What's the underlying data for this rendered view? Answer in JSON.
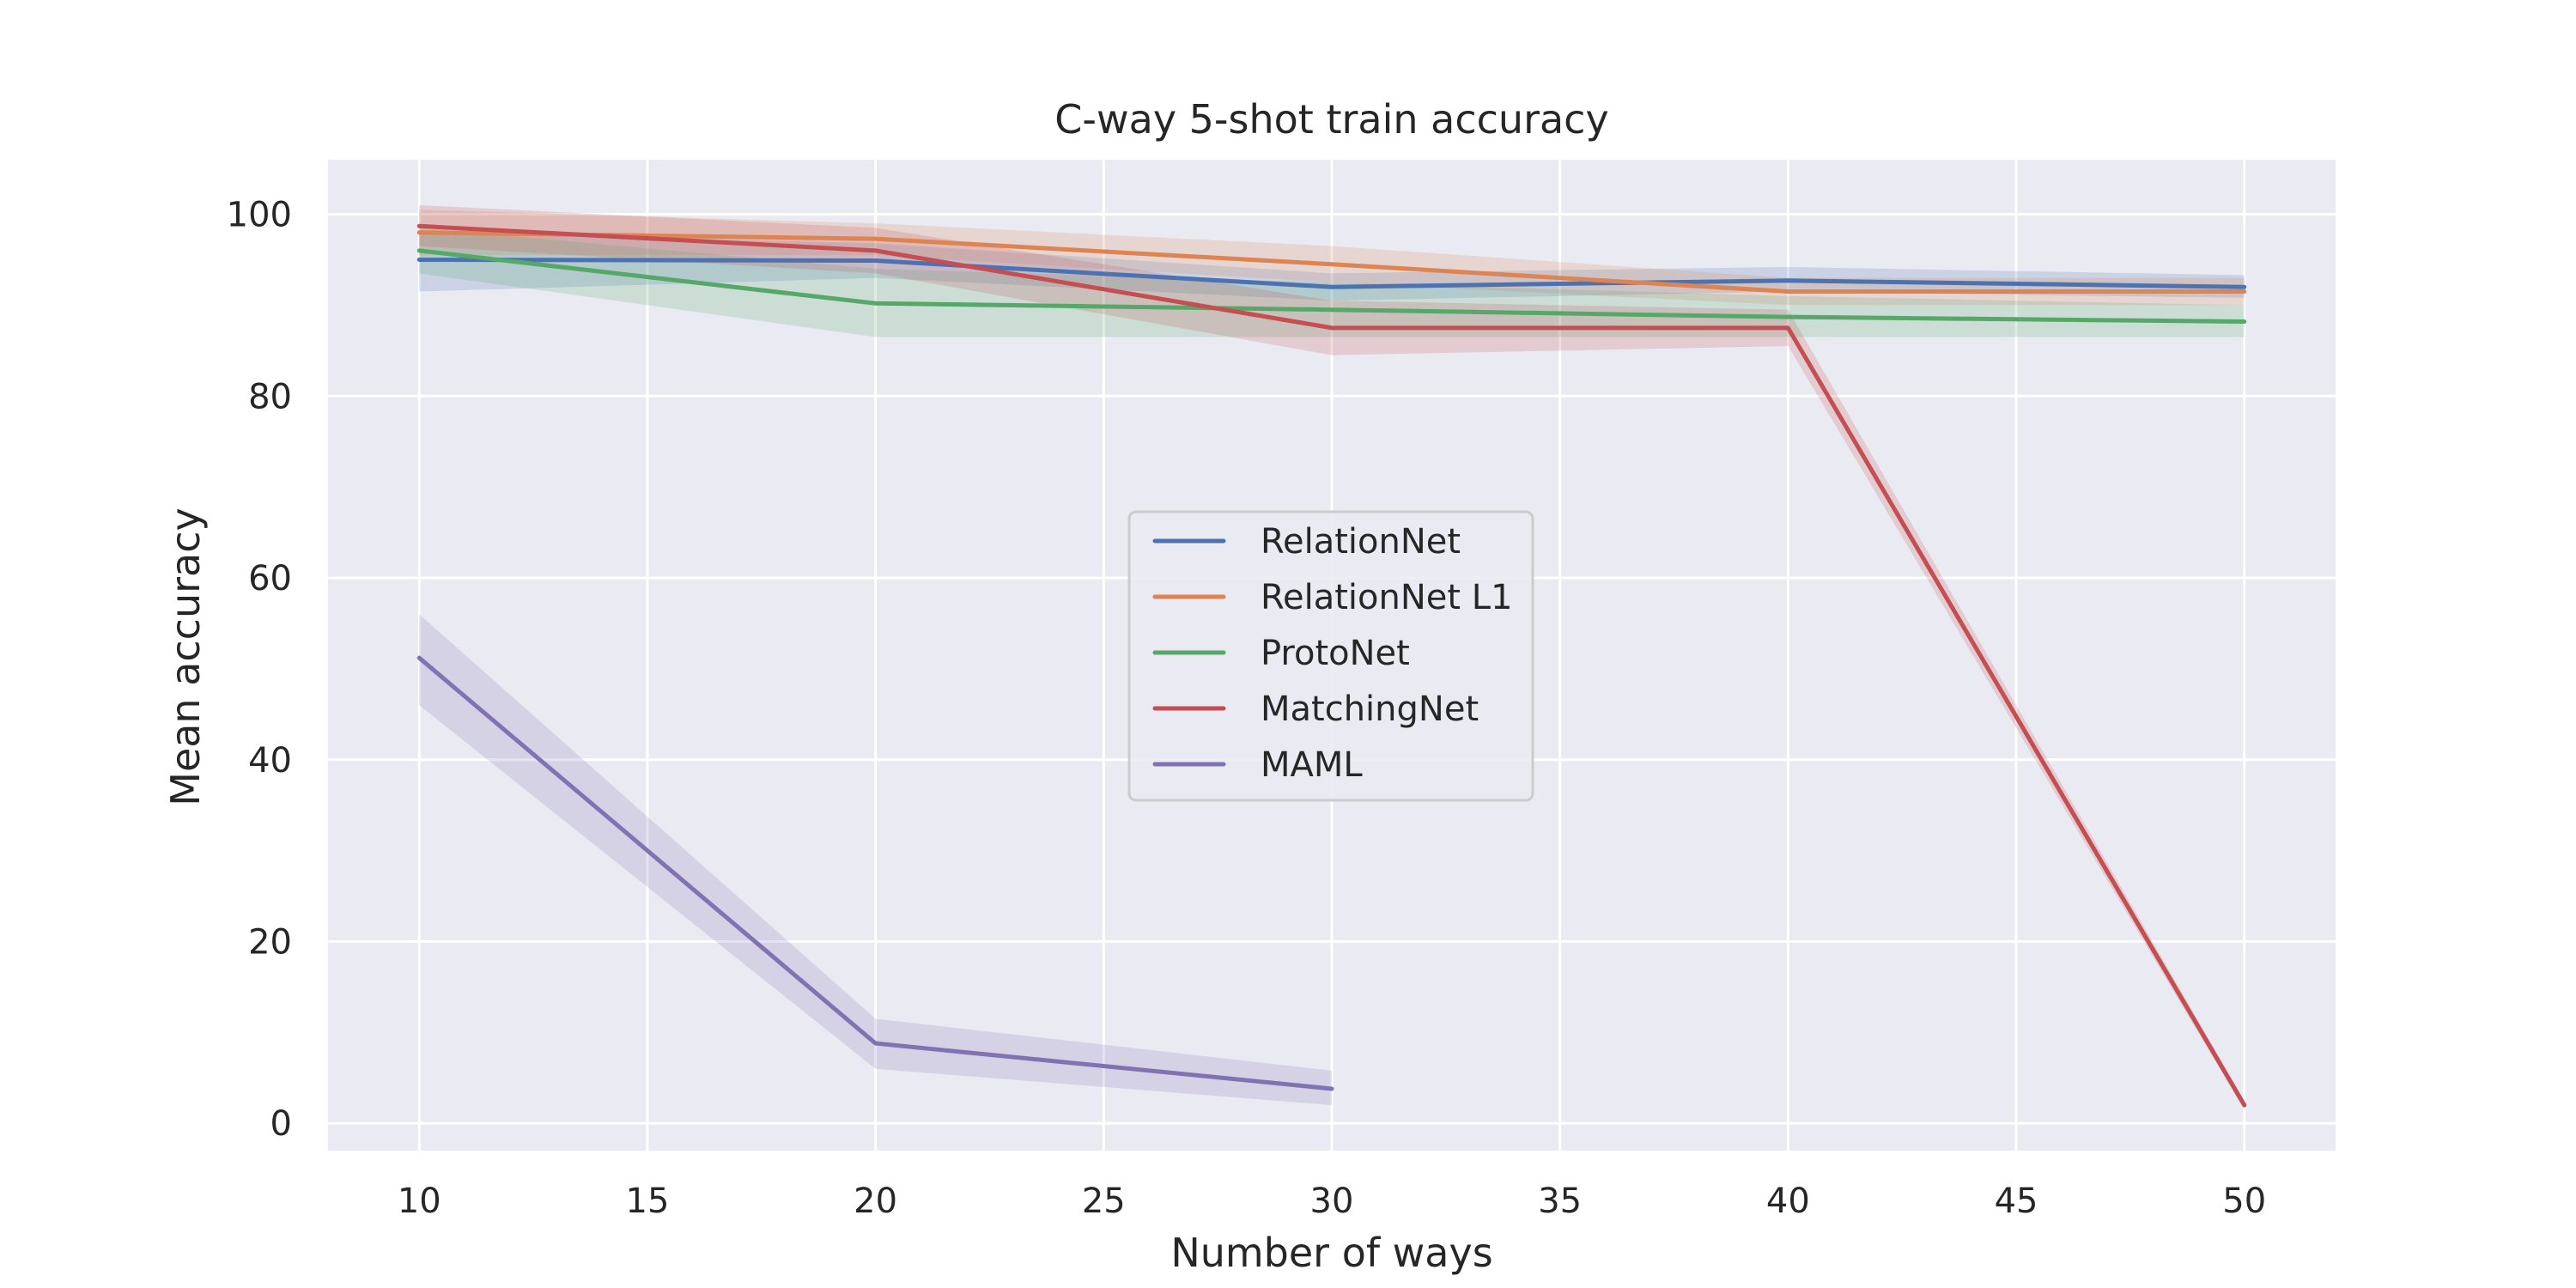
{
  "chart_data": {
    "type": "line",
    "title": "C-way 5-shot train accuracy",
    "xlabel": "Number of ways",
    "ylabel": "Mean accuracy",
    "xlim": [
      8,
      52
    ],
    "ylim": [
      -3,
      106
    ],
    "xticks": [
      10,
      15,
      20,
      25,
      30,
      35,
      40,
      45,
      50
    ],
    "yticks": [
      0,
      20,
      40,
      60,
      80,
      100
    ],
    "grid": true,
    "legend_position": "center",
    "background": "#eaeaf2",
    "series": [
      {
        "name": "RelationNet",
        "color": "#4c72b0",
        "x": [
          10,
          20,
          30,
          40,
          50
        ],
        "values": [
          95.0,
          94.9,
          92.0,
          92.7,
          92.0
        ],
        "lower": [
          91.5,
          93.0,
          90.5,
          91.5,
          90.8
        ],
        "upper": [
          98.0,
          96.8,
          93.5,
          94.2,
          93.3
        ]
      },
      {
        "name": "RelationNet L1",
        "color": "#dd8452",
        "x": [
          10,
          20,
          30,
          40,
          50
        ],
        "values": [
          98.0,
          97.3,
          94.5,
          91.5,
          91.5
        ],
        "lower": [
          95.5,
          95.5,
          92.5,
          90.0,
          90.0
        ],
        "upper": [
          100.5,
          99.0,
          96.5,
          93.0,
          93.0
        ]
      },
      {
        "name": "ProtoNet",
        "color": "#55a868",
        "x": [
          10,
          20,
          30,
          40,
          50
        ],
        "values": [
          96.0,
          90.2,
          89.5,
          88.7,
          88.2
        ],
        "lower": [
          93.5,
          86.5,
          86.5,
          86.5,
          86.5
        ],
        "upper": [
          98.5,
          94.0,
          92.5,
          91.0,
          90.0
        ]
      },
      {
        "name": "MatchingNet",
        "color": "#c44e52",
        "x": [
          10,
          20,
          30,
          40,
          50
        ],
        "values": [
          98.7,
          96.0,
          87.5,
          87.5,
          2.0
        ],
        "lower": [
          96.5,
          93.5,
          84.5,
          85.5,
          1.5
        ],
        "upper": [
          101.0,
          98.5,
          90.5,
          89.5,
          2.5
        ]
      },
      {
        "name": "MAML",
        "color": "#8172b3",
        "x": [
          10,
          20,
          30
        ],
        "values": [
          51.2,
          8.8,
          3.8
        ],
        "lower": [
          46.0,
          6.0,
          2.0
        ],
        "upper": [
          56.0,
          11.5,
          5.8
        ]
      }
    ]
  }
}
